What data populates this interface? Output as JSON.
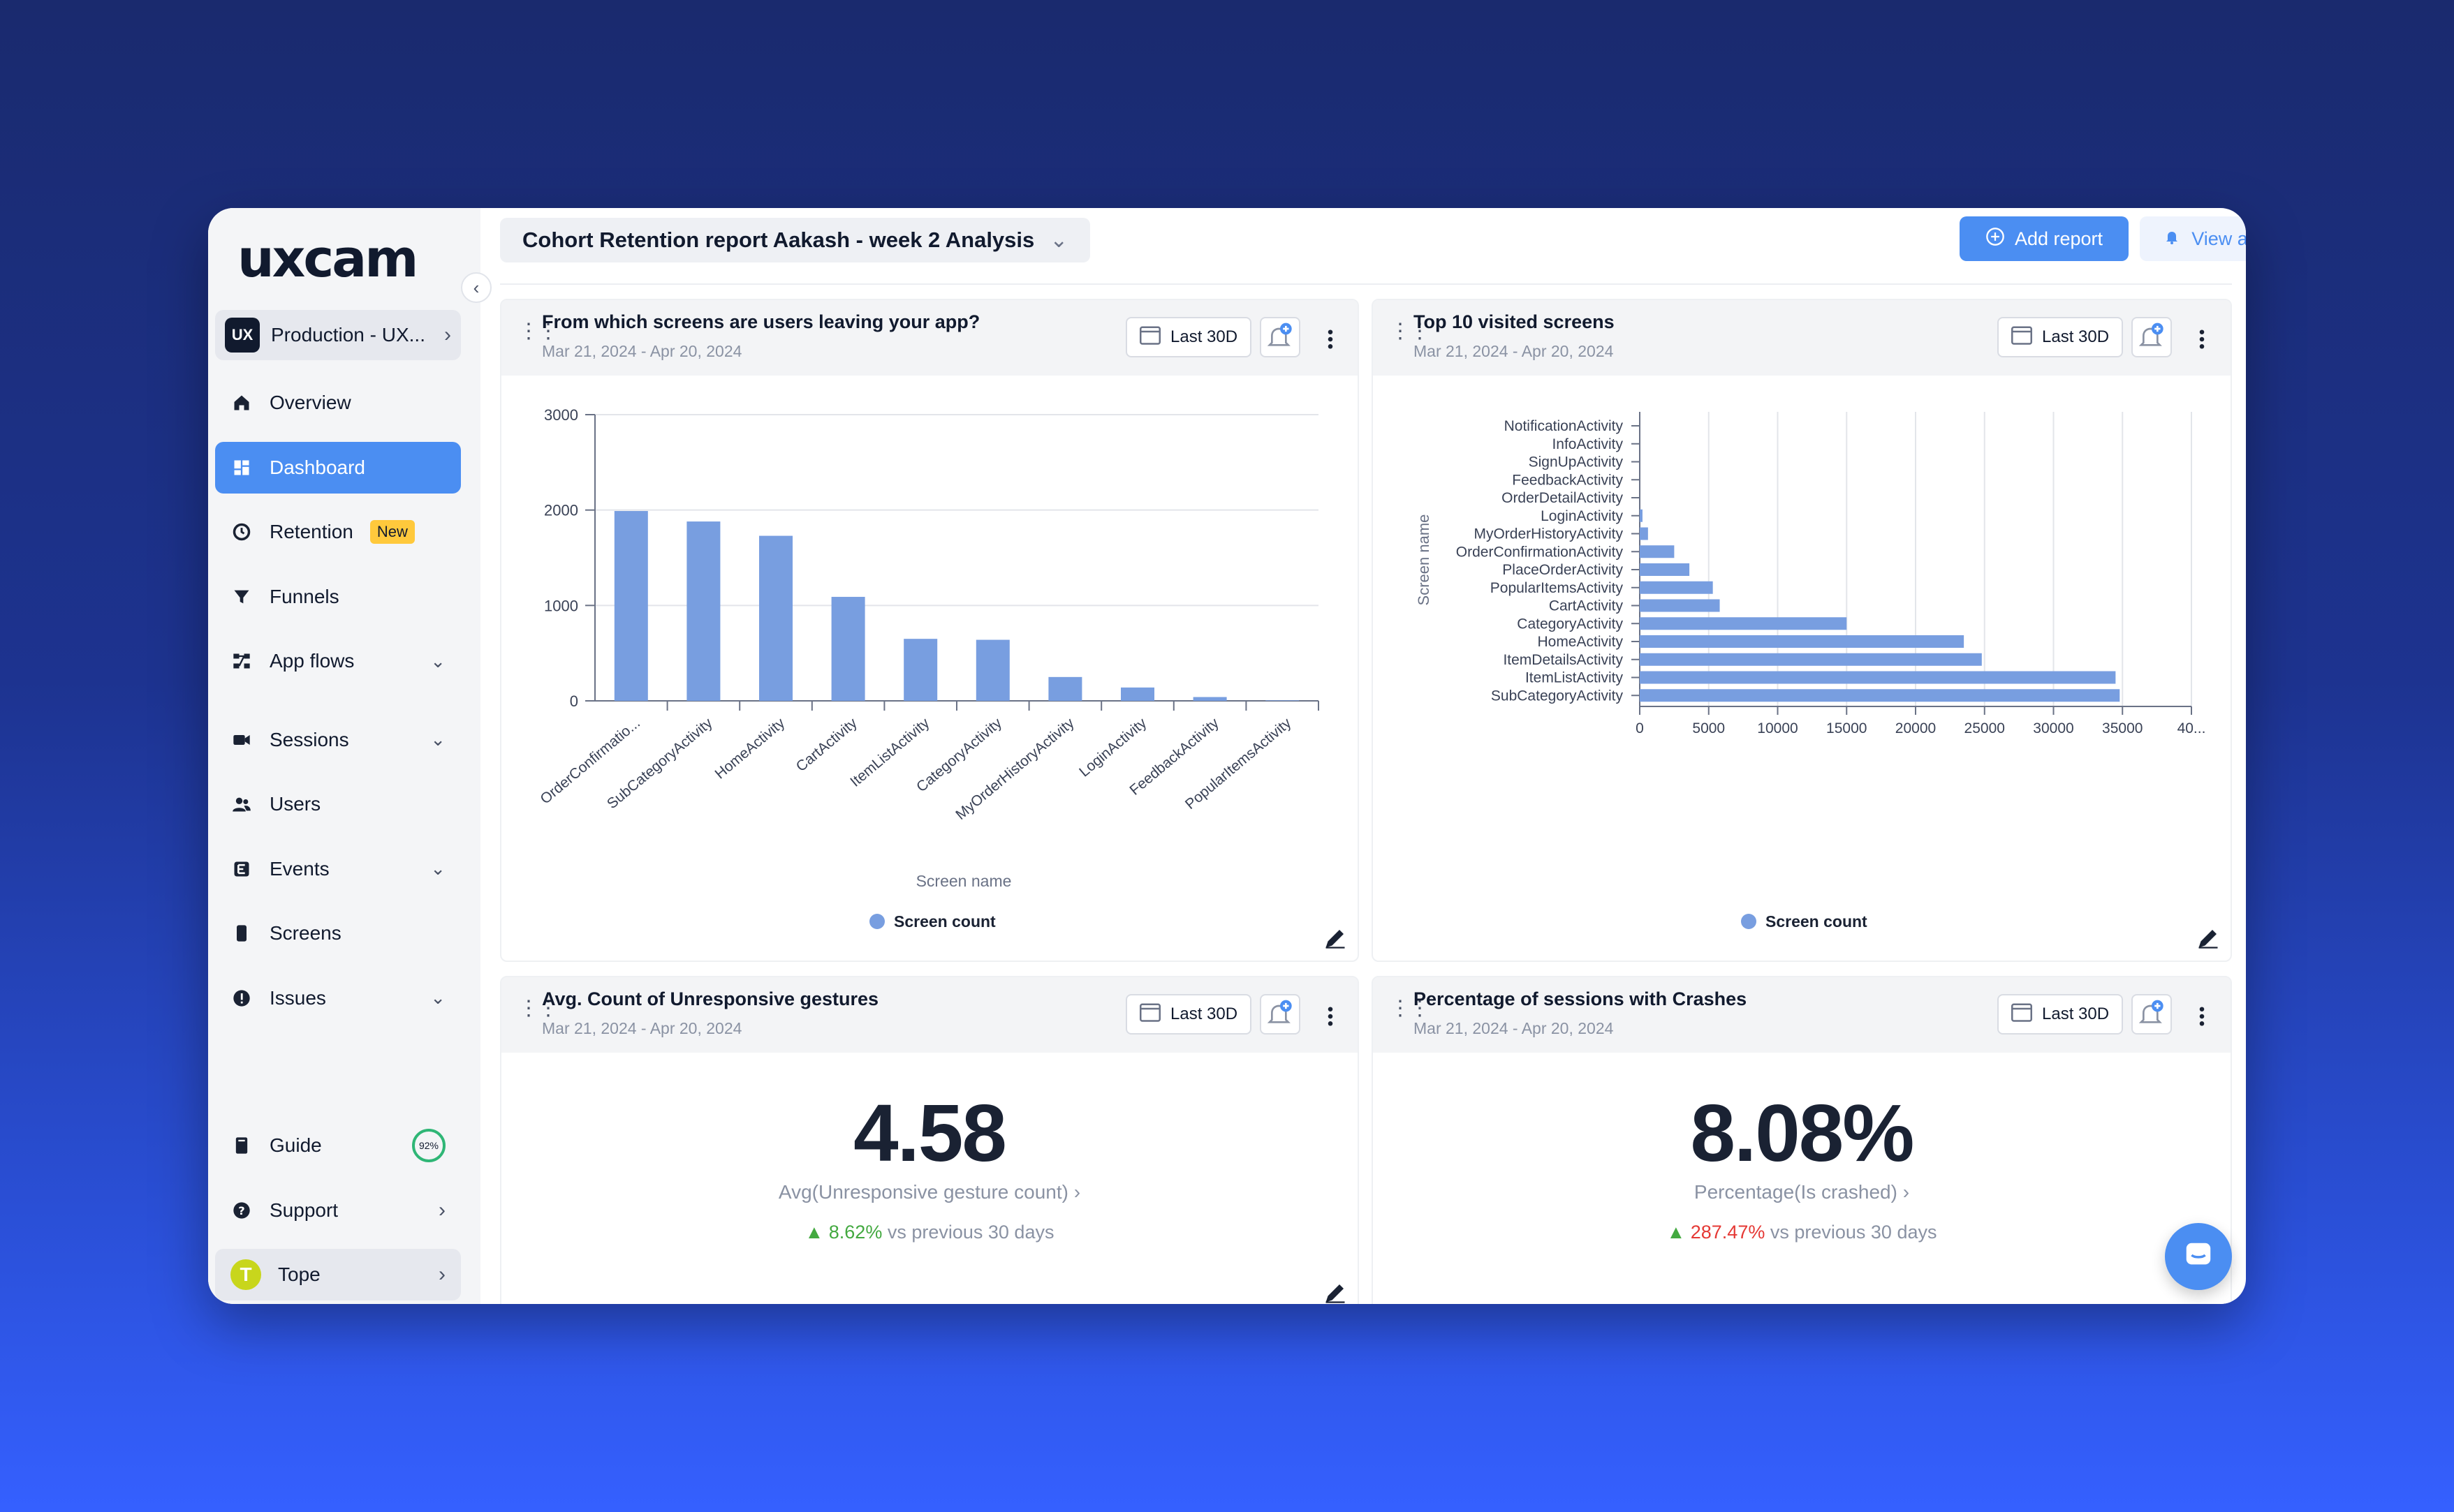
{
  "app": {
    "logo_text": "uxcam"
  },
  "sidebar": {
    "project": {
      "badge": "UX",
      "name": "Production - UX..."
    },
    "items": [
      {
        "label": "Overview",
        "icon": "home-icon"
      },
      {
        "label": "Dashboard",
        "icon": "dashboard-icon",
        "active": true
      },
      {
        "label": "Retention",
        "icon": "retention-icon",
        "badge": "New"
      },
      {
        "label": "Funnels",
        "icon": "funnel-icon"
      },
      {
        "label": "App flows",
        "icon": "flows-icon",
        "expandable": true
      },
      {
        "label": "Sessions",
        "icon": "video-icon",
        "expandable": true
      },
      {
        "label": "Users",
        "icon": "users-icon"
      },
      {
        "label": "Events",
        "icon": "events-icon",
        "expandable": true
      },
      {
        "label": "Screens",
        "icon": "screen-icon"
      },
      {
        "label": "Issues",
        "icon": "alert-circle-icon",
        "expandable": true
      }
    ],
    "bottom": {
      "guide": {
        "label": "Guide",
        "progress": "92%"
      },
      "support": {
        "label": "Support"
      },
      "user": {
        "label": "Tope",
        "initial": "T"
      }
    }
  },
  "header": {
    "report_title": "Cohort Retention report Aakash - week 2 Analysis",
    "add_report": "Add report",
    "view_alerts": "View alerts"
  },
  "cards": {
    "exit_screens": {
      "title": "From which screens are users leaving your app?",
      "date_range": "Mar 21, 2024 - Apr 20, 2024",
      "range_button": "Last 30D"
    },
    "top_screens": {
      "title": "Top 10 visited screens",
      "date_range": "Mar 21, 2024 - Apr 20, 2024",
      "range_button": "Last 30D"
    },
    "unresponsive": {
      "title": "Avg. Count of Unresponsive gestures",
      "date_range": "Mar 21, 2024 - Apr 20, 2024",
      "range_button": "Last 30D",
      "value": "4.58",
      "metric": "Avg(Unresponsive gesture count) ›",
      "change": "8.62%",
      "change_suffix": "vs previous 30 days",
      "change_color": "#43a940"
    },
    "crashes": {
      "title": "Percentage of sessions with Crashes",
      "date_range": "Mar 21, 2024 - Apr 20, 2024",
      "range_button": "Last 30D",
      "value": "8.08%",
      "metric": "Percentage(Is crashed) ›",
      "change": "287.47%",
      "change_suffix": "vs previous 30 days",
      "change_color": "#e53935"
    }
  },
  "chart_data": [
    {
      "type": "bar",
      "orientation": "vertical",
      "categories": [
        "OrderConfirmatio...",
        "SubCategoryActivity",
        "HomeActivity",
        "CartActivity",
        "ItemListActivity",
        "CategoryActivity",
        "MyOrderHistoryActivity",
        "LoginActivity",
        "FeedbackActivity",
        "PopularItemsActivity"
      ],
      "series": [
        {
          "name": "Screen count",
          "values": [
            1990,
            1880,
            1730,
            1090,
            650,
            640,
            250,
            140,
            40,
            5
          ]
        }
      ],
      "xlabel": "Screen name",
      "ylabel": "",
      "ylim": [
        0,
        3000
      ],
      "yticks": [
        0,
        1000,
        2000,
        3000
      ],
      "grid": true,
      "legend": "bottom",
      "color": "#789ee0"
    },
    {
      "type": "bar",
      "orientation": "horizontal",
      "categories": [
        "NotificationActivity",
        "InfoActivity",
        "SignUpActivity",
        "FeedbackActivity",
        "OrderDetailActivity",
        "LoginActivity",
        "MyOrderHistoryActivity",
        "OrderConfirmationActivity",
        "PlaceOrderActivity",
        "PopularItemsActivity",
        "CartActivity",
        "CategoryActivity",
        "HomeActivity",
        "ItemDetailsActivity",
        "ItemListActivity",
        "SubCategoryActivity"
      ],
      "series": [
        {
          "name": "Screen count",
          "values": [
            0,
            0,
            0,
            0,
            0,
            200,
            600,
            2500,
            3600,
            5300,
            5800,
            15000,
            23500,
            24800,
            34500,
            34800
          ]
        }
      ],
      "xlabel": "",
      "ylabel": "Screen name",
      "xlim": [
        0,
        40000
      ],
      "xticks": [
        "0",
        "5000",
        "10000",
        "15000",
        "20000",
        "25000",
        "30000",
        "35000",
        "40..."
      ],
      "grid": true,
      "legend": "bottom",
      "color": "#789ee0"
    }
  ]
}
